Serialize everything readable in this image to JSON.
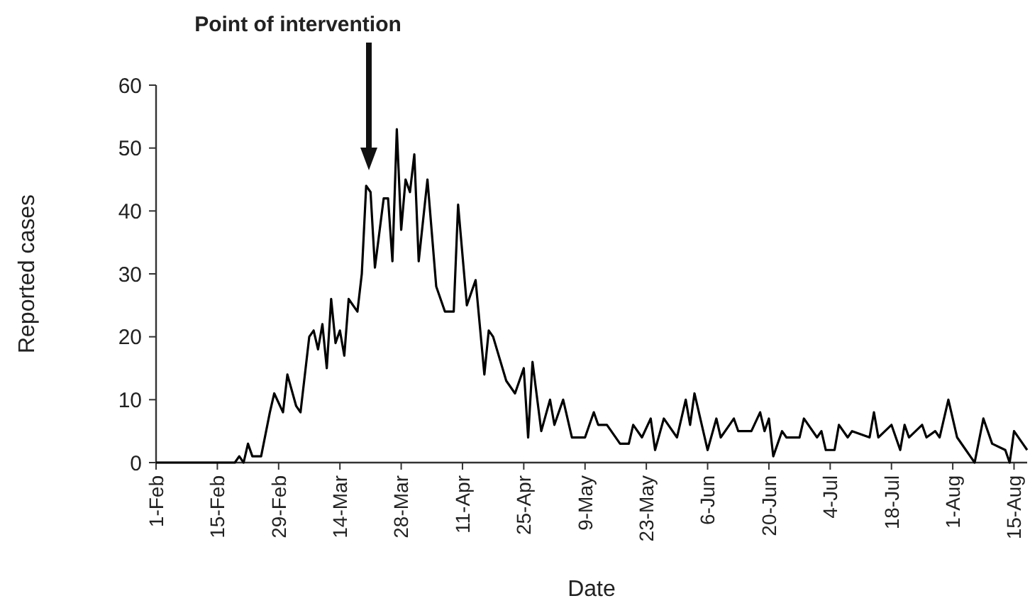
{
  "chart_data": {
    "type": "line",
    "xlabel": "Date",
    "ylabel": "Reported cases",
    "annotations": [
      "Point of intervention"
    ],
    "x": [
      "--02-01",
      "--02-19",
      "--02-20",
      "--02-21",
      "--02-22",
      "--02-23",
      "--02-25",
      "--02-27",
      "--02-28",
      "--03-01",
      "--03-02",
      "--03-04",
      "--03-05",
      "--03-07",
      "--03-08",
      "--03-09",
      "--03-10",
      "--03-11",
      "--03-12",
      "--03-13",
      "--03-14",
      "--03-15",
      "--03-16",
      "--03-18",
      "--03-19",
      "--03-20",
      "--03-21",
      "--03-22",
      "--03-24",
      "--03-25",
      "--03-26",
      "--03-27",
      "--03-28",
      "--03-29",
      "--03-30",
      "--03-31",
      "--04-01",
      "--04-03",
      "--04-05",
      "--04-07",
      "--04-09",
      "--04-10",
      "--04-12",
      "--04-14",
      "--04-16",
      "--04-17",
      "--04-18",
      "--04-21",
      "--04-23",
      "--04-25",
      "--04-26",
      "--04-27",
      "--04-29",
      "--05-01",
      "--05-02",
      "--05-04",
      "--05-06",
      "--05-09",
      "--05-11",
      "--05-12",
      "--05-14",
      "--05-17",
      "--05-19",
      "--05-20",
      "--05-22",
      "--05-24",
      "--05-25",
      "--05-27",
      "--05-30",
      "--06-01",
      "--06-02",
      "--06-03",
      "--06-06",
      "--06-08",
      "--06-09",
      "--06-11",
      "--06-12",
      "--06-13",
      "--06-16",
      "--06-18",
      "--06-19",
      "--06-20",
      "--06-21",
      "--06-23",
      "--06-24",
      "--06-25",
      "--06-27",
      "--06-28",
      "--07-01",
      "--07-02",
      "--07-03",
      "--07-05",
      "--07-06",
      "--07-08",
      "--07-09",
      "--07-13",
      "--07-14",
      "--07-15",
      "--07-18",
      "--07-20",
      "--07-21",
      "--07-22",
      "--07-25",
      "--07-26",
      "--07-28",
      "--07-29",
      "--07-31",
      "--08-02",
      "--08-04",
      "--08-05",
      "--08-06",
      "--08-08",
      "--08-10",
      "--08-13",
      "--08-14",
      "--08-15",
      "--08-17",
      "--08-18"
    ],
    "series": [
      {
        "color": "#000000",
        "values": [
          0,
          0,
          1,
          0,
          3,
          1,
          1,
          8,
          11,
          8,
          14,
          9,
          8,
          20,
          21,
          18,
          22,
          15,
          26,
          19,
          21,
          17,
          26,
          24,
          30,
          44,
          43,
          31,
          42,
          42,
          32,
          53,
          37,
          45,
          43,
          49,
          32,
          45,
          28,
          24,
          24,
          41,
          25,
          29,
          14,
          21,
          20,
          13,
          11,
          15,
          4,
          16,
          5,
          10,
          6,
          10,
          4,
          4,
          8,
          6,
          6,
          3,
          3,
          6,
          4,
          7,
          2,
          7,
          4,
          10,
          6,
          11,
          2,
          7,
          4,
          6,
          7,
          5,
          5,
          8,
          5,
          7,
          1,
          5,
          4,
          4,
          4,
          7,
          4,
          5,
          2,
          2,
          6,
          4,
          5,
          4,
          8,
          4,
          6,
          2,
          6,
          4,
          6,
          4,
          5,
          4,
          10,
          4,
          2,
          1,
          0,
          7,
          3,
          2,
          0,
          5,
          3,
          2
        ]
      }
    ],
    "xlim": [
      "--02-01",
      "--08-18"
    ],
    "xticks": [
      {
        "value": "--02-01",
        "label": "1-Feb"
      },
      {
        "value": "--02-15",
        "label": "15-Feb"
      },
      {
        "value": "--02-29",
        "label": "29-Feb"
      },
      {
        "value": "--03-14",
        "label": "14-Mar"
      },
      {
        "value": "--03-28",
        "label": "28-Mar"
      },
      {
        "value": "--04-11",
        "label": "11-Apr"
      },
      {
        "value": "--04-25",
        "label": "25-Apr"
      },
      {
        "value": "--05-09",
        "label": "9-May"
      },
      {
        "value": "--05-23",
        "label": "23-May"
      },
      {
        "value": "--06-06",
        "label": "6-Jun"
      },
      {
        "value": "--06-20",
        "label": "20-Jun"
      },
      {
        "value": "--07-04",
        "label": "4-Jul"
      },
      {
        "value": "--07-18",
        "label": "18-Jul"
      },
      {
        "value": "--08-01",
        "label": "1-Aug"
      },
      {
        "value": "--08-15",
        "label": "15-Aug"
      }
    ],
    "ylim": [
      0,
      60
    ],
    "yticks": [
      0,
      10,
      20,
      30,
      40,
      50,
      60
    ],
    "grid": false,
    "marker": "none",
    "line_style": "solid"
  }
}
